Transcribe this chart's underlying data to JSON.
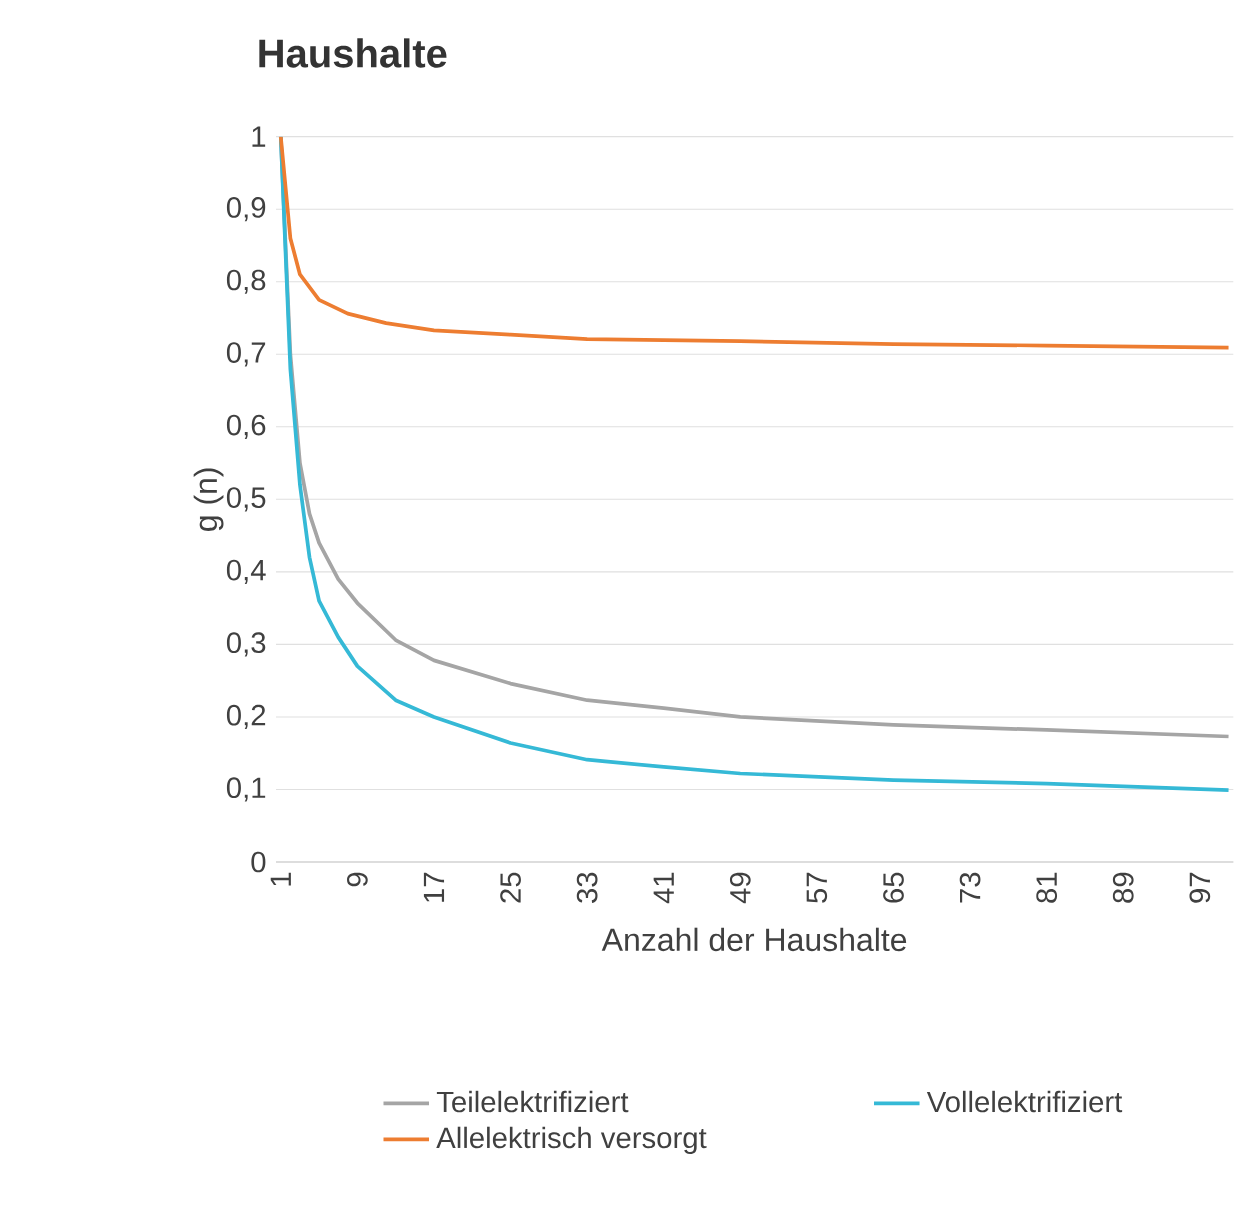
{
  "chart_data": {
    "type": "line",
    "title": "Haushalte",
    "xlabel": "Anzahl der Haushalte",
    "ylabel": "g (n)",
    "xlim": [
      0.5,
      100.5
    ],
    "xticks": [
      1,
      9,
      17,
      25,
      33,
      41,
      49,
      57,
      65,
      73,
      81,
      89,
      97
    ],
    "ylim": [
      0,
      1
    ],
    "yticks": [
      0,
      {
        "value": 0.1,
        "label": "0,1"
      },
      {
        "value": 0.2,
        "label": "0,2"
      },
      {
        "value": 0.3,
        "label": "0,3"
      },
      {
        "value": 0.4,
        "label": "0,4"
      },
      {
        "value": 0.5,
        "label": "0,5"
      },
      {
        "value": 0.6,
        "label": "0,6"
      },
      {
        "value": 0.7,
        "label": "0,7"
      },
      {
        "value": 0.8,
        "label": "0,8"
      },
      {
        "value": 0.9,
        "label": "0,9"
      },
      1
    ],
    "grid": "y",
    "legend": "bottom",
    "marker": "none",
    "line_style": "solid",
    "series": [
      {
        "name": "Teilelektrifiziert",
        "color": "#a5a5a5",
        "x": [
          1,
          2,
          3,
          4,
          5,
          7,
          9,
          13,
          17,
          25,
          33,
          41,
          49,
          65,
          81,
          100
        ],
        "values": [
          1.0,
          0.7,
          0.55,
          0.48,
          0.44,
          0.39,
          0.357,
          0.306,
          0.278,
          0.246,
          0.223,
          0.212,
          0.2,
          0.189,
          0.182,
          0.173
        ]
      },
      {
        "name": "Vollelektrifiziert",
        "color": "#35b9d6",
        "x": [
          1,
          2,
          3,
          4,
          5,
          7,
          9,
          13,
          17,
          25,
          33,
          41,
          49,
          65,
          81,
          100
        ],
        "values": [
          1.0,
          0.68,
          0.52,
          0.42,
          0.36,
          0.31,
          0.27,
          0.223,
          0.2,
          0.164,
          0.141,
          0.131,
          0.122,
          0.113,
          0.108,
          0.099
        ]
      },
      {
        "name": "Allelektrisch versorgt",
        "color": "#ed7d31",
        "x": [
          1,
          2,
          3,
          5,
          8,
          12,
          17,
          25,
          33,
          49,
          65,
          81,
          100
        ],
        "values": [
          1.0,
          0.86,
          0.81,
          0.775,
          0.756,
          0.743,
          0.733,
          0.727,
          0.721,
          0.718,
          0.714,
          0.712,
          0.709
        ]
      }
    ]
  }
}
